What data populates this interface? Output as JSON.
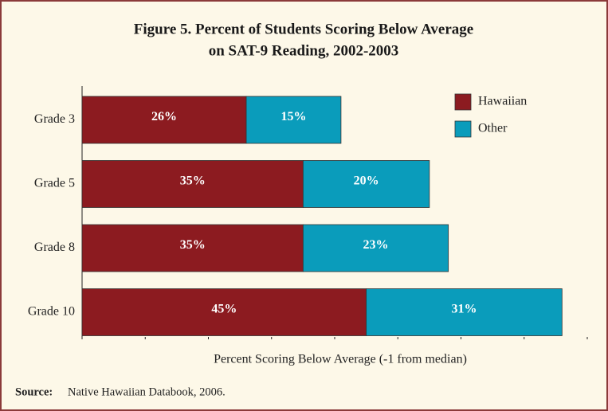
{
  "chart_data": {
    "type": "stacked-bar-horizontal",
    "title": [
      "Figure 5.  Percent of Students Scoring Below Average",
      "on SAT-9 Reading, 2002-2003"
    ],
    "categories": [
      "Grade 3",
      "Grade 5",
      "Grade 8",
      "Grade 10"
    ],
    "series": [
      {
        "name": "Hawaiian",
        "color": "#8c1b20",
        "values": [
          26,
          35,
          35,
          45
        ],
        "value_labels": [
          "26%",
          "35%",
          "35%",
          "45%"
        ]
      },
      {
        "name": "Other",
        "color": "#0a9cbb",
        "values": [
          15,
          20,
          23,
          31
        ],
        "value_labels": [
          "15%",
          "20%",
          "23%",
          "31%"
        ]
      }
    ],
    "xlim": [
      0,
      80
    ],
    "xticks": [
      0,
      10,
      20,
      30,
      40,
      50,
      60,
      70,
      80
    ],
    "x_label": "Percent Scoring Below Average (-1 from median)",
    "legend": "top-right",
    "source_label": "Source:",
    "source": "Native Hawaiian Databook, 2006."
  }
}
